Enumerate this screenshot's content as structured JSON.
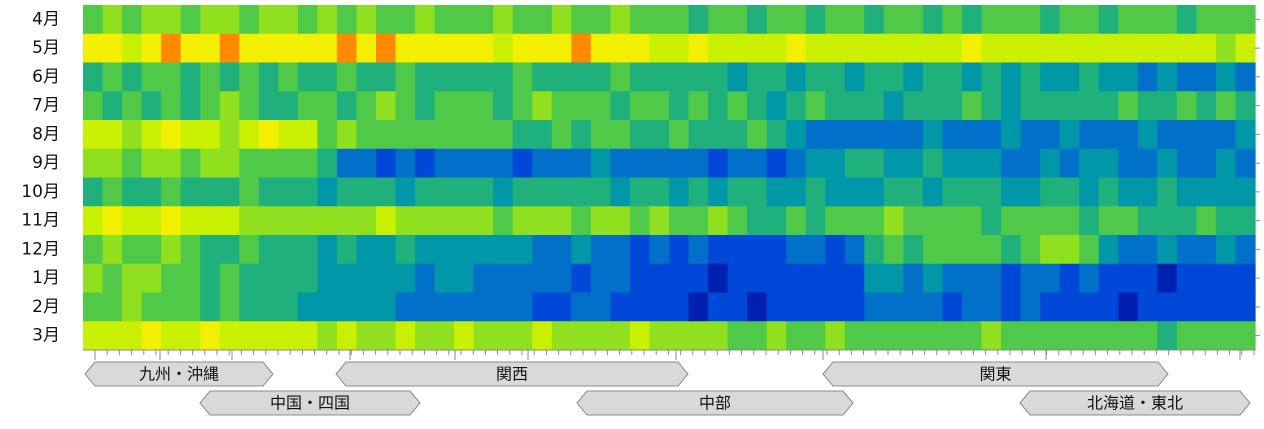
{
  "chart_data": {
    "type": "heatmap",
    "rows": [
      "4月",
      "5月",
      "6月",
      "7月",
      "8月",
      "9月",
      "10月",
      "11月",
      "12月",
      "1月",
      "2月",
      "3月"
    ],
    "colors": [
      "#000c80",
      "#0020b0",
      "#0048d8",
      "#0070c8",
      "#0098a8",
      "#20b07c",
      "#50c848",
      "#90e020",
      "#c8f000",
      "#f2f000",
      "#ff8a00"
    ],
    "values": [
      [
        6,
        7,
        6,
        7,
        7,
        6,
        7,
        7,
        6,
        7,
        7,
        6,
        7,
        6,
        7,
        6,
        6,
        7,
        6,
        6,
        6,
        7,
        6,
        6,
        7,
        6,
        6,
        7,
        6,
        6,
        6,
        5,
        6,
        6,
        5,
        6,
        6,
        5,
        6,
        6,
        5,
        6,
        6,
        5,
        6,
        5,
        6,
        6,
        6,
        5,
        6,
        6,
        5,
        6,
        6,
        6,
        5,
        6,
        6,
        6
      ],
      [
        9,
        9,
        8,
        9,
        10,
        9,
        9,
        10,
        9,
        9,
        9,
        9,
        9,
        10,
        9,
        10,
        9,
        9,
        9,
        9,
        9,
        8,
        9,
        9,
        9,
        10,
        9,
        9,
        9,
        8,
        8,
        9,
        8,
        8,
        8,
        8,
        9,
        8,
        8,
        8,
        8,
        8,
        8,
        8,
        8,
        9,
        8,
        8,
        8,
        8,
        8,
        8,
        8,
        8,
        8,
        8,
        8,
        8,
        7,
        8
      ],
      [
        5,
        6,
        5,
        6,
        6,
        5,
        6,
        5,
        6,
        5,
        6,
        5,
        5,
        6,
        5,
        5,
        6,
        5,
        5,
        5,
        5,
        5,
        6,
        5,
        5,
        5,
        5,
        6,
        5,
        5,
        5,
        5,
        5,
        4,
        5,
        5,
        4,
        5,
        5,
        4,
        5,
        5,
        4,
        5,
        5,
        4,
        5,
        4,
        5,
        4,
        4,
        5,
        4,
        4,
        3,
        4,
        3,
        3,
        4,
        3
      ],
      [
        6,
        5,
        6,
        5,
        6,
        5,
        6,
        7,
        6,
        5,
        5,
        6,
        6,
        5,
        6,
        7,
        6,
        5,
        6,
        6,
        6,
        5,
        6,
        7,
        6,
        6,
        6,
        5,
        6,
        6,
        5,
        6,
        5,
        6,
        5,
        4,
        5,
        6,
        5,
        5,
        5,
        4,
        5,
        5,
        5,
        6,
        5,
        4,
        5,
        5,
        5,
        5,
        5,
        6,
        5,
        5,
        6,
        5,
        6,
        5
      ],
      [
        8,
        8,
        7,
        8,
        9,
        8,
        8,
        7,
        8,
        9,
        8,
        8,
        6,
        7,
        6,
        6,
        6,
        6,
        6,
        6,
        6,
        6,
        5,
        5,
        6,
        5,
        6,
        6,
        5,
        5,
        6,
        5,
        5,
        5,
        6,
        5,
        4,
        3,
        3,
        3,
        3,
        3,
        3,
        4,
        3,
        3,
        3,
        4,
        3,
        3,
        4,
        3,
        3,
        3,
        4,
        3,
        3,
        3,
        3,
        4
      ],
      [
        7,
        7,
        6,
        7,
        7,
        6,
        7,
        7,
        6,
        6,
        6,
        6,
        5,
        3,
        3,
        2,
        3,
        2,
        3,
        3,
        3,
        3,
        2,
        3,
        3,
        3,
        4,
        3,
        3,
        3,
        3,
        3,
        2,
        3,
        3,
        2,
        3,
        4,
        4,
        5,
        5,
        4,
        4,
        5,
        4,
        4,
        4,
        3,
        3,
        4,
        3,
        4,
        4,
        3,
        3,
        4,
        3,
        3,
        4,
        3
      ],
      [
        5,
        6,
        5,
        5,
        6,
        5,
        5,
        5,
        6,
        5,
        5,
        5,
        4,
        5,
        5,
        5,
        4,
        5,
        5,
        5,
        5,
        4,
        5,
        5,
        5,
        5,
        5,
        4,
        5,
        5,
        4,
        5,
        4,
        5,
        5,
        4,
        4,
        5,
        4,
        4,
        4,
        5,
        5,
        4,
        5,
        5,
        5,
        4,
        4,
        5,
        5,
        4,
        5,
        4,
        4,
        5,
        4,
        4,
        4,
        4
      ],
      [
        8,
        9,
        8,
        8,
        9,
        8,
        8,
        8,
        7,
        7,
        7,
        7,
        7,
        7,
        7,
        8,
        7,
        7,
        7,
        7,
        7,
        6,
        7,
        7,
        7,
        6,
        7,
        7,
        6,
        7,
        6,
        6,
        7,
        6,
        5,
        5,
        6,
        5,
        6,
        6,
        6,
        7,
        6,
        6,
        6,
        6,
        5,
        6,
        6,
        6,
        6,
        5,
        6,
        6,
        5,
        5,
        5,
        6,
        5,
        5
      ],
      [
        6,
        7,
        6,
        6,
        7,
        6,
        5,
        5,
        6,
        5,
        5,
        5,
        4,
        5,
        4,
        4,
        5,
        4,
        4,
        4,
        4,
        4,
        4,
        3,
        3,
        4,
        3,
        3,
        2,
        3,
        2,
        3,
        2,
        2,
        2,
        2,
        3,
        3,
        2,
        3,
        5,
        6,
        5,
        6,
        6,
        6,
        6,
        5,
        6,
        7,
        7,
        6,
        4,
        3,
        3,
        4,
        3,
        3,
        4,
        3
      ],
      [
        7,
        6,
        7,
        7,
        6,
        6,
        5,
        6,
        5,
        5,
        5,
        5,
        4,
        4,
        4,
        4,
        4,
        3,
        4,
        4,
        3,
        3,
        3,
        3,
        3,
        2,
        3,
        3,
        2,
        2,
        2,
        2,
        1,
        2,
        2,
        2,
        2,
        2,
        2,
        2,
        4,
        4,
        3,
        4,
        3,
        3,
        3,
        2,
        3,
        3,
        2,
        3,
        2,
        2,
        2,
        1,
        2,
        2,
        2,
        2
      ],
      [
        6,
        6,
        7,
        6,
        6,
        6,
        5,
        6,
        5,
        5,
        5,
        4,
        4,
        4,
        4,
        4,
        3,
        3,
        3,
        3,
        3,
        3,
        3,
        2,
        2,
        3,
        3,
        2,
        2,
        2,
        2,
        1,
        2,
        2,
        1,
        2,
        2,
        2,
        2,
        2,
        3,
        3,
        3,
        3,
        2,
        3,
        3,
        2,
        3,
        2,
        2,
        2,
        2,
        1,
        2,
        2,
        2,
        2,
        2,
        2
      ],
      [
        8,
        8,
        8,
        9,
        8,
        8,
        9,
        8,
        8,
        8,
        8,
        8,
        7,
        8,
        7,
        7,
        8,
        7,
        7,
        8,
        7,
        7,
        7,
        8,
        7,
        7,
        7,
        7,
        8,
        7,
        7,
        7,
        7,
        6,
        6,
        7,
        6,
        6,
        7,
        6,
        6,
        6,
        6,
        6,
        6,
        6,
        7,
        6,
        6,
        6,
        6,
        6,
        6,
        6,
        6,
        5,
        6,
        6,
        6,
        6
      ]
    ],
    "regions": [
      "九州・沖縄",
      "中国・四国",
      "関西",
      "中部",
      "関東",
      "北海道・東北"
    ]
  }
}
